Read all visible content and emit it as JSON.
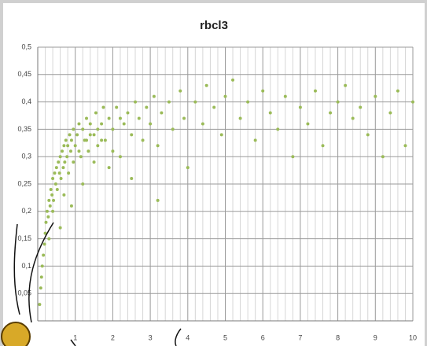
{
  "chart_data": {
    "type": "scatter",
    "title": "rbcl3",
    "xlim": [
      0,
      10
    ],
    "ylim": [
      0,
      0.5
    ],
    "xticks": [
      1,
      2,
      3,
      4,
      5,
      6,
      7,
      8,
      9,
      10
    ],
    "yticks": [
      {
        "value": 0.05,
        "label": "0,05"
      },
      {
        "value": 0.1,
        "label": "0,1"
      },
      {
        "value": 0.15,
        "label": "0,15"
      },
      {
        "value": 0.2,
        "label": "0,2"
      },
      {
        "value": 0.25,
        "label": "0,25"
      },
      {
        "value": 0.3,
        "label": "0,3"
      },
      {
        "value": 0.35,
        "label": "0,35"
      },
      {
        "value": 0.4,
        "label": "0,4"
      },
      {
        "value": 0.45,
        "label": "0,45"
      },
      {
        "value": 0.5,
        "label": "0,5"
      }
    ],
    "grid": true,
    "minor_xgrid_per_major": 5,
    "x": [
      0.05,
      0.08,
      0.1,
      0.12,
      0.15,
      0.18,
      0.2,
      0.22,
      0.25,
      0.28,
      0.3,
      0.33,
      0.35,
      0.38,
      0.4,
      0.42,
      0.45,
      0.48,
      0.5,
      0.52,
      0.55,
      0.58,
      0.6,
      0.62,
      0.65,
      0.68,
      0.7,
      0.72,
      0.75,
      0.78,
      0.8,
      0.82,
      0.85,
      0.88,
      0.9,
      0.95,
      1.0,
      1.05,
      1.1,
      1.15,
      1.2,
      1.25,
      1.3,
      1.35,
      1.4,
      1.5,
      1.55,
      1.6,
      1.7,
      1.75,
      1.8,
      1.9,
      2.0,
      2.1,
      2.2,
      2.3,
      2.4,
      2.5,
      2.6,
      2.7,
      2.8,
      2.9,
      3.0,
      3.1,
      3.2,
      3.3,
      3.5,
      3.6,
      3.8,
      3.9,
      4.0,
      4.2,
      4.4,
      4.5,
      4.7,
      4.9,
      5.0,
      5.2,
      5.4,
      5.6,
      5.8,
      6.0,
      6.2,
      6.4,
      6.6,
      6.8,
      7.0,
      7.2,
      7.4,
      7.6,
      7.8,
      8.0,
      8.2,
      8.4,
      8.6,
      8.8,
      9.0,
      9.2,
      9.4,
      9.6,
      9.8,
      10.0,
      2.5,
      3.2,
      1.2,
      0.9,
      0.7,
      0.6,
      0.4,
      0.3,
      1.9,
      1.5,
      2.0,
      1.3,
      1.1,
      0.95,
      1.6,
      2.2,
      1.7,
      1.4
    ],
    "series": [
      {
        "color": "#9bbb59",
        "values": [
          0.03,
          0.06,
          0.08,
          0.1,
          0.12,
          0.14,
          0.16,
          0.18,
          0.2,
          0.19,
          0.22,
          0.21,
          0.24,
          0.23,
          0.26,
          0.22,
          0.27,
          0.25,
          0.28,
          0.24,
          0.29,
          0.27,
          0.3,
          0.26,
          0.31,
          0.28,
          0.32,
          0.29,
          0.33,
          0.3,
          0.32,
          0.27,
          0.34,
          0.31,
          0.33,
          0.35,
          0.32,
          0.34,
          0.36,
          0.3,
          0.35,
          0.33,
          0.37,
          0.31,
          0.36,
          0.34,
          0.38,
          0.32,
          0.36,
          0.39,
          0.33,
          0.37,
          0.35,
          0.39,
          0.3,
          0.36,
          0.38,
          0.34,
          0.4,
          0.37,
          0.33,
          0.39,
          0.36,
          0.41,
          0.32,
          0.38,
          0.4,
          0.35,
          0.42,
          0.37,
          0.28,
          0.4,
          0.36,
          0.43,
          0.39,
          0.34,
          0.41,
          0.44,
          0.37,
          0.4,
          0.33,
          0.42,
          0.38,
          0.35,
          0.41,
          0.3,
          0.39,
          0.36,
          0.42,
          0.32,
          0.38,
          0.4,
          0.43,
          0.37,
          0.39,
          0.34,
          0.41,
          0.3,
          0.38,
          0.42,
          0.32,
          0.4,
          0.26,
          0.22,
          0.25,
          0.21,
          0.23,
          0.17,
          0.2,
          0.15,
          0.28,
          0.29,
          0.31,
          0.33,
          0.31,
          0.29,
          0.35,
          0.37,
          0.33,
          0.34
        ]
      }
    ]
  }
}
